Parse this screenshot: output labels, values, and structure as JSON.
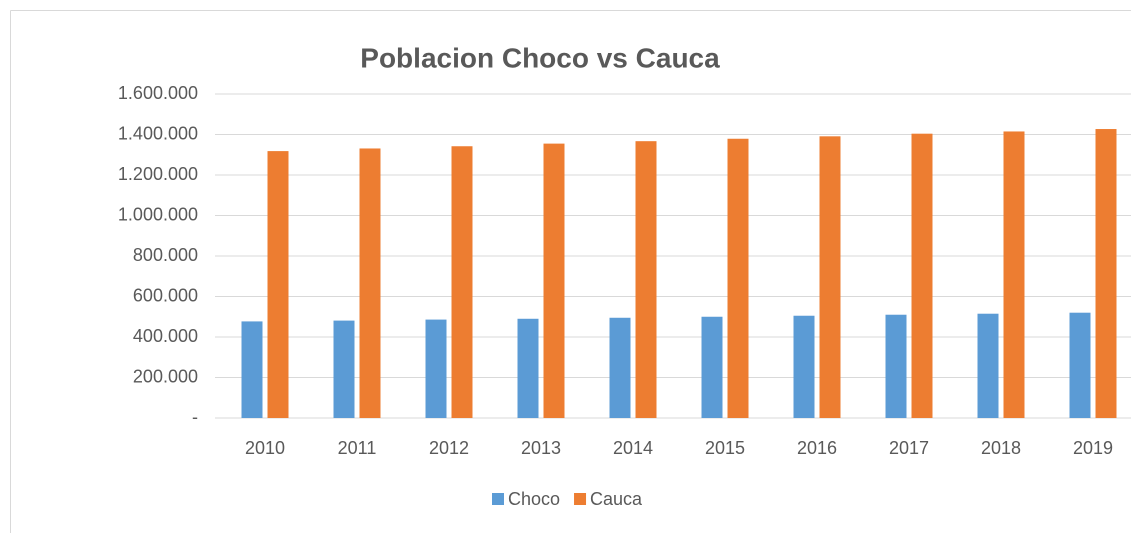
{
  "chart_data": {
    "type": "bar",
    "title": "Poblacion Choco vs Cauca",
    "categories": [
      "2010",
      "2011",
      "2012",
      "2013",
      "2014",
      "2015",
      "2016",
      "2017",
      "2018",
      "2019"
    ],
    "series": [
      {
        "name": "Choco",
        "color": "#5b9bd5",
        "values": [
          477000,
          481000,
          486000,
          490000,
          495000,
          500000,
          505000,
          510000,
          515000,
          520000
        ]
      },
      {
        "name": "Cauca",
        "color": "#ed7d31",
        "values": [
          1318000,
          1331000,
          1342000,
          1355000,
          1367000,
          1379000,
          1391000,
          1404000,
          1415000,
          1427000
        ]
      }
    ],
    "ylim": [
      0,
      1600000
    ],
    "yticks": [
      {
        "value": 0,
        "label": "-"
      },
      {
        "value": 200000,
        "label": "200.000"
      },
      {
        "value": 400000,
        "label": "400.000"
      },
      {
        "value": 600000,
        "label": "600.000"
      },
      {
        "value": 800000,
        "label": "800.000"
      },
      {
        "value": 1000000,
        "label": "1.000.000"
      },
      {
        "value": 1200000,
        "label": "1.200.000"
      },
      {
        "value": 1400000,
        "label": "1.400.000"
      },
      {
        "value": 1600000,
        "label": "1.600.000"
      }
    ],
    "grid": true,
    "legend": "bottom"
  }
}
